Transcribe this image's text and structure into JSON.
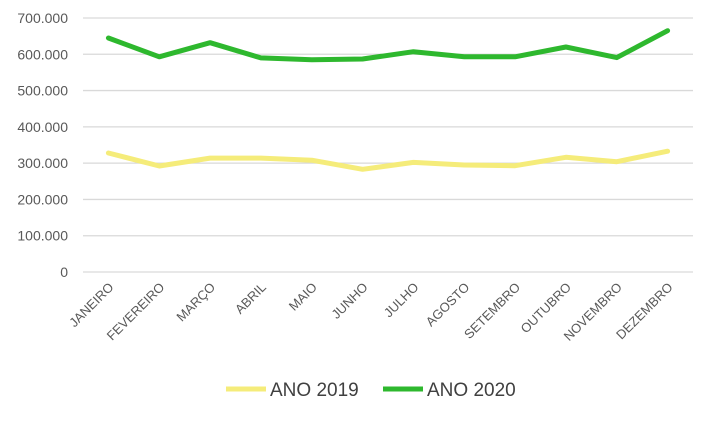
{
  "chart_data": {
    "type": "line",
    "categories": [
      "JANEIRO",
      "FEVEREIRO",
      "MARÇO",
      "ABRIL",
      "MAIO",
      "JUNHO",
      "JULHO",
      "AGOSTO",
      "SETEMBRO",
      "OUTUBRO",
      "NOVEMBRO",
      "DEZEMBRO"
    ],
    "y_ticks": [
      "0",
      "100.000",
      "200.000",
      "300.000",
      "400.000",
      "500.000",
      "600.000",
      "700.000"
    ],
    "ylim": [
      0,
      700000
    ],
    "grid": true,
    "legend_position": "bottom",
    "series": [
      {
        "name": "ANO 2019",
        "color": "#f5ec7a",
        "values": [
          328000,
          292000,
          314000,
          314000,
          308000,
          283000,
          302000,
          295000,
          293000,
          316000,
          304000,
          333000
        ]
      },
      {
        "name": "ANO 2020",
        "color": "#2eb82e",
        "values": [
          645000,
          593000,
          632000,
          590000,
          585000,
          587000,
          607000,
          593000,
          593000,
          620000,
          591000,
          665000
        ]
      }
    ]
  }
}
